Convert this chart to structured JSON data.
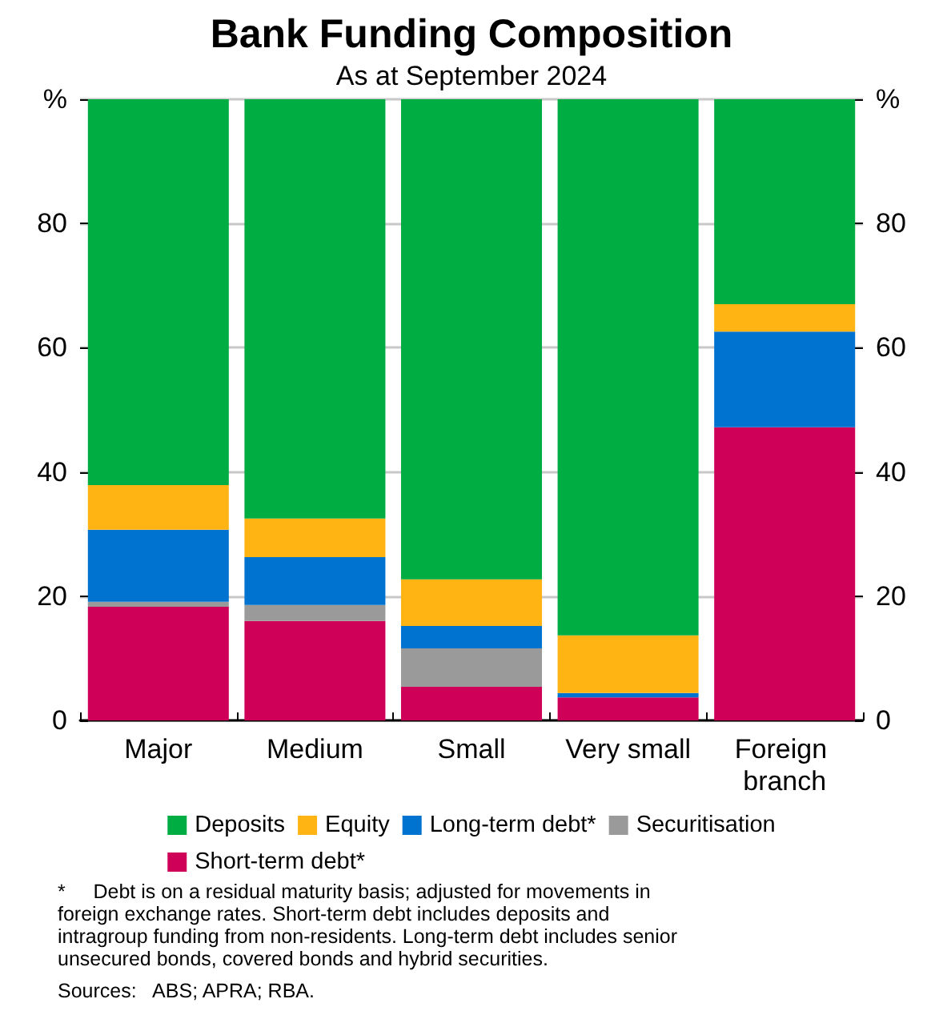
{
  "chart_data": {
    "type": "bar",
    "title": "Bank Funding Composition",
    "subtitle": "As at September 2024",
    "categories": [
      "Major",
      "Medium",
      "Small",
      "Very small",
      "Foreign branch"
    ],
    "stacked": true,
    "series": [
      {
        "name": "Short-term debt*",
        "color": "#cf0058",
        "values": [
          18.3,
          16.0,
          5.4,
          3.7,
          47.2
        ]
      },
      {
        "name": "Securitisation",
        "color": "#9a9a9a",
        "values": [
          0.8,
          2.6,
          6.2,
          0,
          0
        ]
      },
      {
        "name": "Long-term debt*",
        "color": "#0072cf",
        "values": [
          11.6,
          7.7,
          3.6,
          0.7,
          15.4
        ]
      },
      {
        "name": "Equity",
        "color": "#ffb414",
        "values": [
          7.2,
          6.2,
          7.5,
          9.3,
          4.4
        ]
      },
      {
        "name": "Deposits",
        "color": "#00ad43",
        "values": [
          62.1,
          67.5,
          77.3,
          86.3,
          33.0
        ]
      }
    ],
    "ylim": [
      0,
      100
    ],
    "yticks": [
      0,
      20,
      40,
      60,
      80,
      {
        "value": 100,
        "label": "%"
      }
    ],
    "y2lim": [
      0,
      100
    ],
    "y2ticks": [
      0,
      20,
      40,
      60,
      80,
      {
        "value": 100,
        "label": "%"
      }
    ],
    "grid": "y",
    "legend": "bottom",
    "annotations": [
      "*     Debt is on a residual maturity basis; adjusted for movements in foreign exchange rates. Short-term debt includes deposits and intragroup funding from non-residents. Long-term debt includes senior unsecured bonds, covered bonds and hybrid securities.",
      "Sources:   ABS; APRA; RBA."
    ]
  }
}
